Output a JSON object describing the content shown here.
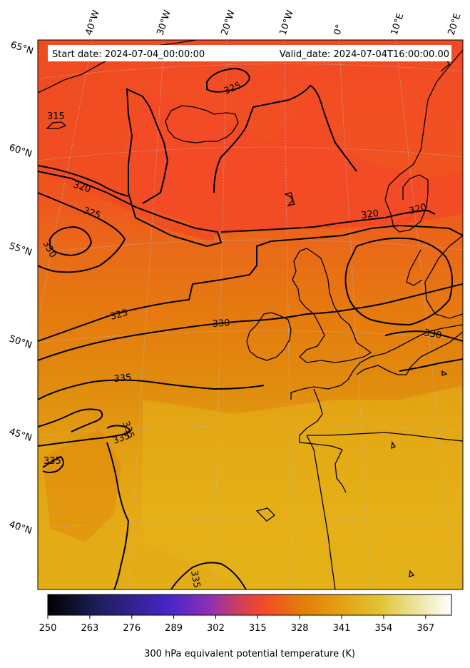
{
  "header": {
    "start_date": "Start date: 2024-07-04_00:00:00",
    "valid_date": "Valid_date: 2024-07-04T16:00:00.00"
  },
  "map": {
    "lon_labels": [
      "40°W",
      "30°W",
      "20°W",
      "10°W",
      "0°",
      "10°E",
      "20°E"
    ],
    "lat_labels": [
      "65°N",
      "60°N",
      "55°N",
      "50°N",
      "45°N",
      "40°N"
    ],
    "contour_labels": [
      {
        "name": "contour-label-325-north",
        "text": "325"
      },
      {
        "name": "contour-label-315",
        "text": "315"
      },
      {
        "name": "contour-label-320-west",
        "text": "320"
      },
      {
        "name": "contour-label-325-west",
        "text": "325"
      },
      {
        "name": "contour-label-330-west",
        "text": "330"
      },
      {
        "name": "contour-label-320-east",
        "text": "320"
      },
      {
        "name": "contour-label-320-norway",
        "text": "320"
      },
      {
        "name": "contour-label-325-mid",
        "text": "325"
      },
      {
        "name": "contour-label-330-mid",
        "text": "330"
      },
      {
        "name": "contour-label-330-east",
        "text": "330"
      },
      {
        "name": "contour-label-335-a",
        "text": "335"
      },
      {
        "name": "contour-label-335-b",
        "text": "335"
      },
      {
        "name": "contour-label-335-c",
        "text": "335"
      },
      {
        "name": "contour-label-335-d",
        "text": "335"
      },
      {
        "name": "contour-label-335-south",
        "text": "335"
      }
    ],
    "colors": {
      "hot_red": "#f24a26",
      "orange": "#e67a10",
      "dark_orange": "#e38a0c",
      "gold": "#e3a515",
      "yellow": "#e4b016"
    }
  },
  "colorbar": {
    "ticks": [
      "250",
      "263",
      "276",
      "289",
      "302",
      "315",
      "328",
      "341",
      "354",
      "367"
    ],
    "label": "300 hPa equivalent potential temperature (K)",
    "range": [
      250,
      375
    ],
    "stops": [
      "#000000",
      "#1f1f5c",
      "#4a25c6",
      "#8a2fb8",
      "#d63f52",
      "#f4472a",
      "#e5780c",
      "#e2a514",
      "#e7d35c",
      "#ffffff"
    ]
  }
}
